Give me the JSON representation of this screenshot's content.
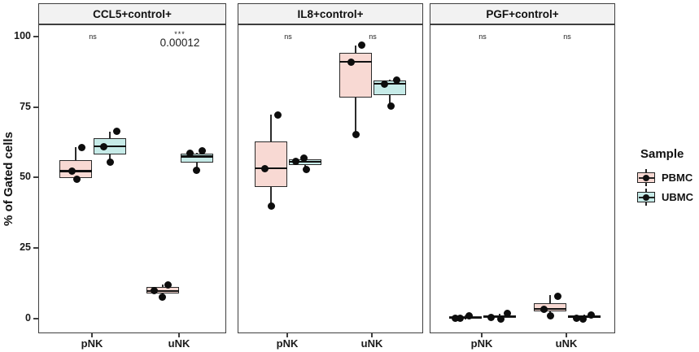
{
  "chart_data": {
    "type": "boxplot",
    "ylabel": "% of Gated cells",
    "ylim": [
      0,
      100
    ],
    "yticks": [
      0,
      25,
      50,
      75,
      100
    ],
    "categories": [
      "pNK",
      "uNK"
    ],
    "grid": false,
    "legend": {
      "title": "Sample",
      "position": "right",
      "items": [
        {
          "label": "PBMC",
          "color": "#f8d9d3"
        },
        {
          "label": "UBMC",
          "color": "#c6ebe8"
        }
      ]
    },
    "colors": {
      "PBMC": "#f8d9d3",
      "UBMC": "#c6ebe8"
    },
    "facets": [
      {
        "title": "CCL5+control+",
        "annotations": [
          {
            "cat": "pNK",
            "label": "ns"
          },
          {
            "cat": "uNK",
            "label": "***",
            "p": "0.00012"
          }
        ],
        "series": [
          {
            "cat": "pNK",
            "sample": "PBMC",
            "stats": {
              "low": 49.5,
              "q1": 50.0,
              "med": 52.5,
              "q3": 56.5,
              "high": 61.0
            },
            "points": [
              {
                "v": 52.6,
                "dx": -5
              },
              {
                "v": 49.5,
                "dx": 1
              },
              {
                "v": 60.8,
                "dx": 7
              }
            ]
          },
          {
            "cat": "pNK",
            "sample": "UBMC",
            "stats": {
              "low": 55.5,
              "q1": 58.5,
              "med": 61.3,
              "q3": 64.3,
              "high": 66.5
            },
            "points": [
              {
                "v": 66.8,
                "dx": 8
              },
              {
                "v": 61.2,
                "dx": -8
              },
              {
                "v": 55.6,
                "dx": 0
              }
            ]
          },
          {
            "cat": "uNK",
            "sample": "PBMC",
            "stats": {
              "low": 7.8,
              "q1": 9.2,
              "med": 10.0,
              "q3": 11.4,
              "high": 12.2
            },
            "points": [
              {
                "v": 10.0,
                "dx": -11
              },
              {
                "v": 12.2,
                "dx": 6
              },
              {
                "v": 7.8,
                "dx": -1
              }
            ]
          },
          {
            "cat": "uNK",
            "sample": "UBMC",
            "stats": {
              "low": 53.0,
              "q1": 55.5,
              "med": 57.7,
              "q3": 58.8,
              "high": 59.0
            },
            "points": [
              {
                "v": 58.9,
                "dx": -9
              },
              {
                "v": 59.6,
                "dx": 6
              },
              {
                "v": 52.9,
                "dx": -1
              }
            ]
          }
        ]
      },
      {
        "title": "IL8+control+",
        "annotations": [
          {
            "cat": "pNK",
            "label": "ns"
          },
          {
            "cat": "uNK",
            "label": "ns"
          }
        ],
        "series": [
          {
            "cat": "pNK",
            "sample": "PBMC",
            "stats": {
              "low": 40.0,
              "q1": 47.0,
              "med": 53.5,
              "q3": 63.0,
              "high": 72.5
            },
            "points": [
              {
                "v": 72.5,
                "dx": 8
              },
              {
                "v": 53.3,
                "dx": -8
              },
              {
                "v": 40.0,
                "dx": 0
              }
            ]
          },
          {
            "cat": "pNK",
            "sample": "UBMC",
            "stats": {
              "low": 53.2,
              "q1": 54.6,
              "med": 55.8,
              "q3": 56.8,
              "high": 57.2
            },
            "points": [
              {
                "v": 56.1,
                "dx": -12
              },
              {
                "v": 57.0,
                "dx": -2
              },
              {
                "v": 53.2,
                "dx": 1
              }
            ]
          },
          {
            "cat": "uNK",
            "sample": "PBMC",
            "stats": {
              "low": 65.4,
              "q1": 78.6,
              "med": 91.4,
              "q3": 94.5,
              "high": 97.0
            },
            "points": [
              {
                "v": 97.4,
                "dx": 7
              },
              {
                "v": 91.3,
                "dx": -6
              },
              {
                "v": 65.4,
                "dx": 0
              }
            ]
          },
          {
            "cat": "uNK",
            "sample": "UBMC",
            "stats": {
              "low": 75.5,
              "q1": 79.5,
              "med": 83.5,
              "q3": 84.6,
              "high": 85.0
            },
            "points": [
              {
                "v": 83.4,
                "dx": -7
              },
              {
                "v": 84.9,
                "dx": 8
              },
              {
                "v": 75.5,
                "dx": 1
              }
            ]
          }
        ]
      },
      {
        "title": "PGF+control+",
        "annotations": [
          {
            "cat": "pNK",
            "label": "ns"
          },
          {
            "cat": "uNK",
            "label": "ns"
          }
        ],
        "series": [
          {
            "cat": "pNK",
            "sample": "PBMC",
            "stats": {
              "low": 0.1,
              "q1": 0.2,
              "med": 0.5,
              "q3": 1.0,
              "high": 1.3
            },
            "points": [
              {
                "v": 0.4,
                "dx": -7
              },
              {
                "v": 1.2,
                "dx": 4
              },
              {
                "v": 0.2,
                "dx": -13
              }
            ]
          },
          {
            "cat": "pNK",
            "sample": "UBMC",
            "stats": {
              "low": 0.2,
              "q1": 0.5,
              "med": 1.0,
              "q3": 1.4,
              "high": 1.9
            },
            "points": [
              {
                "v": 0.6,
                "dx": -11
              },
              {
                "v": 0.1,
                "dx": 1
              },
              {
                "v": 1.9,
                "dx": 9
              }
            ]
          },
          {
            "cat": "uNK",
            "sample": "PBMC",
            "stats": {
              "low": 1.2,
              "q1": 2.8,
              "med": 3.6,
              "q3": 5.7,
              "high": 8.4
            },
            "points": [
              {
                "v": 3.5,
                "dx": -8
              },
              {
                "v": 1.2,
                "dx": 0
              },
              {
                "v": 8.1,
                "dx": 9
              }
            ]
          },
          {
            "cat": "uNK",
            "sample": "UBMC",
            "stats": {
              "low": 0.2,
              "q1": 0.5,
              "med": 0.9,
              "q3": 1.3,
              "high": 1.6
            },
            "points": [
              {
                "v": 0.4,
                "dx": -10
              },
              {
                "v": 0.1,
                "dx": -2
              },
              {
                "v": 1.4,
                "dx": 8
              }
            ]
          }
        ]
      }
    ]
  }
}
